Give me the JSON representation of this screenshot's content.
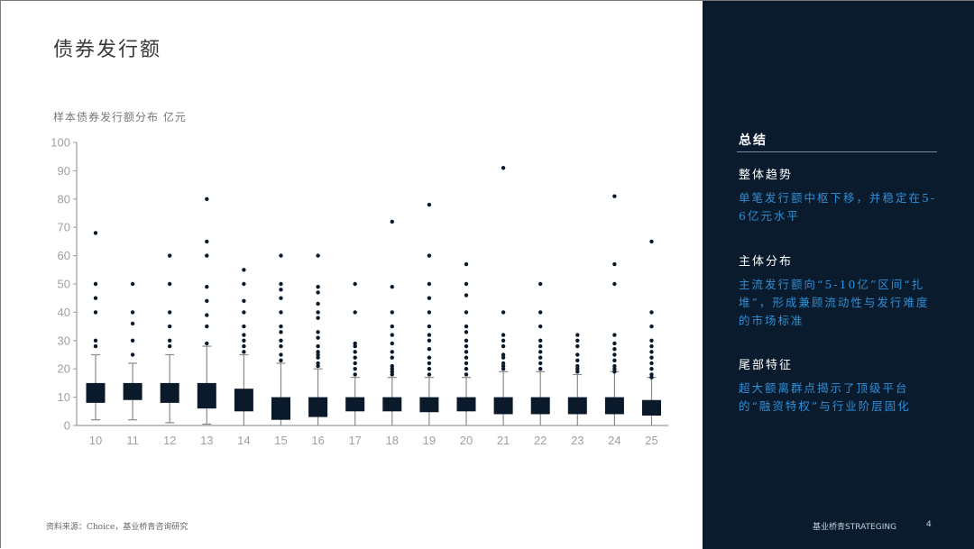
{
  "page": {
    "title": "债券发行额",
    "source": "资料来源：Choice，基业桥青咨询研究",
    "footer_brand": "基业桥青STRATEGING",
    "page_number": "4"
  },
  "colors": {
    "box_fill": "#0a1a2a",
    "whisker": "#8a8a8a",
    "outlier": "#0a1a2a",
    "axis": "#9a9a9a",
    "tick_label": "#a0a0a0",
    "panel_bg": "#0a1b2d",
    "accent_text": "#2e8fd6"
  },
  "summary": {
    "title": "总结",
    "sections": [
      {
        "heading": "整体趋势",
        "body": "单笔发行额中枢下移，并稳定在5-6亿元水平"
      },
      {
        "heading": "主体分布",
        "body": "主流发行额向“5-10亿”区间“扎堆”，形成兼顾流动性与发行难度的市场标准"
      },
      {
        "heading": "尾部特征",
        "body": "超大额离群点揭示了顶级平台的“融资特权”与行业阶层固化"
      }
    ]
  },
  "chart_data": {
    "type": "boxplot",
    "title": "样本债券发行额分布 亿元",
    "xlabel": "",
    "ylabel": "亿元",
    "ylim": [
      0,
      100
    ],
    "yticks": [
      0,
      10,
      20,
      30,
      40,
      50,
      60,
      70,
      80,
      90,
      100
    ],
    "grid": false,
    "legend": null,
    "categories": [
      "10",
      "11",
      "12",
      "13",
      "14",
      "15",
      "16",
      "17",
      "18",
      "19",
      "20",
      "21",
      "22",
      "23",
      "24",
      "25"
    ],
    "series": [
      {
        "category": "10",
        "whisker_low": 2,
        "q1": 8,
        "q3": 15,
        "whisker_high": 25,
        "outliers": [
          68,
          50,
          45,
          40,
          30,
          28
        ]
      },
      {
        "category": "11",
        "whisker_low": 2,
        "q1": 9,
        "q3": 15,
        "whisker_high": 22,
        "outliers": [
          50,
          40,
          36,
          30,
          25
        ]
      },
      {
        "category": "12",
        "whisker_low": 1,
        "q1": 8,
        "q3": 15,
        "whisker_high": 25,
        "outliers": [
          60,
          50,
          40,
          35,
          30,
          28
        ]
      },
      {
        "category": "13",
        "whisker_low": 0.5,
        "q1": 6,
        "q3": 15,
        "whisker_high": 28,
        "outliers": [
          80,
          65,
          60,
          49,
          44,
          39,
          35,
          29
        ]
      },
      {
        "category": "14",
        "whisker_low": 0,
        "q1": 5,
        "q3": 13,
        "whisker_high": 25,
        "outliers": [
          55,
          50,
          44,
          40,
          35,
          32,
          30,
          28,
          26
        ]
      },
      {
        "category": "15",
        "whisker_low": 0,
        "q1": 2,
        "q3": 10,
        "whisker_high": 22,
        "outliers": [
          60,
          50,
          48,
          45,
          40,
          35,
          33,
          30,
          28,
          25,
          23
        ]
      },
      {
        "category": "16",
        "whisker_low": 0,
        "q1": 3,
        "q3": 10,
        "whisker_high": 20,
        "outliers": [
          60,
          49,
          47,
          43,
          40,
          38,
          33,
          31,
          28,
          26,
          25,
          24,
          22,
          21
        ]
      },
      {
        "category": "17",
        "whisker_low": 0,
        "q1": 5,
        "q3": 10,
        "whisker_high": 17,
        "outliers": [
          50,
          40,
          29,
          28,
          26,
          24,
          22,
          20,
          18
        ]
      },
      {
        "category": "18",
        "whisker_low": 0,
        "q1": 5,
        "q3": 10,
        "whisker_high": 17,
        "outliers": [
          72,
          49,
          40,
          35,
          32,
          29,
          26,
          24,
          21,
          20,
          19,
          18
        ]
      },
      {
        "category": "19",
        "whisker_low": 0,
        "q1": 4.7,
        "q3": 10,
        "whisker_high": 17,
        "outliers": [
          78,
          60,
          50,
          45,
          40,
          35,
          32,
          30,
          27,
          24,
          22,
          20,
          18
        ]
      },
      {
        "category": "20",
        "whisker_low": 0,
        "q1": 5,
        "q3": 10,
        "whisker_high": 17,
        "outliers": [
          57,
          50,
          46,
          40,
          35,
          33,
          30,
          28,
          26,
          24,
          22,
          20,
          18
        ]
      },
      {
        "category": "21",
        "whisker_low": 0,
        "q1": 4,
        "q3": 10,
        "whisker_high": 19,
        "outliers": [
          91,
          40,
          32,
          30,
          28,
          25,
          24,
          22,
          21,
          20
        ]
      },
      {
        "category": "22",
        "whisker_low": 0,
        "q1": 4,
        "q3": 10,
        "whisker_high": 19,
        "outliers": [
          50,
          40,
          35,
          30,
          28,
          26,
          24,
          22,
          20
        ]
      },
      {
        "category": "23",
        "whisker_low": 0,
        "q1": 4,
        "q3": 10,
        "whisker_high": 18,
        "outliers": [
          32,
          30,
          28,
          25,
          23,
          21,
          20,
          19
        ]
      },
      {
        "category": "24",
        "whisker_low": 0,
        "q1": 4,
        "q3": 10,
        "whisker_high": 19,
        "outliers": [
          81,
          57,
          50,
          32,
          29,
          27,
          25,
          23,
          21,
          20,
          19
        ]
      },
      {
        "category": "25",
        "whisker_low": 0,
        "q1": 3.5,
        "q3": 9,
        "whisker_high": 17,
        "outliers": [
          65,
          40,
          35,
          30,
          28,
          26,
          24,
          22,
          20,
          18,
          17
        ]
      }
    ]
  }
}
